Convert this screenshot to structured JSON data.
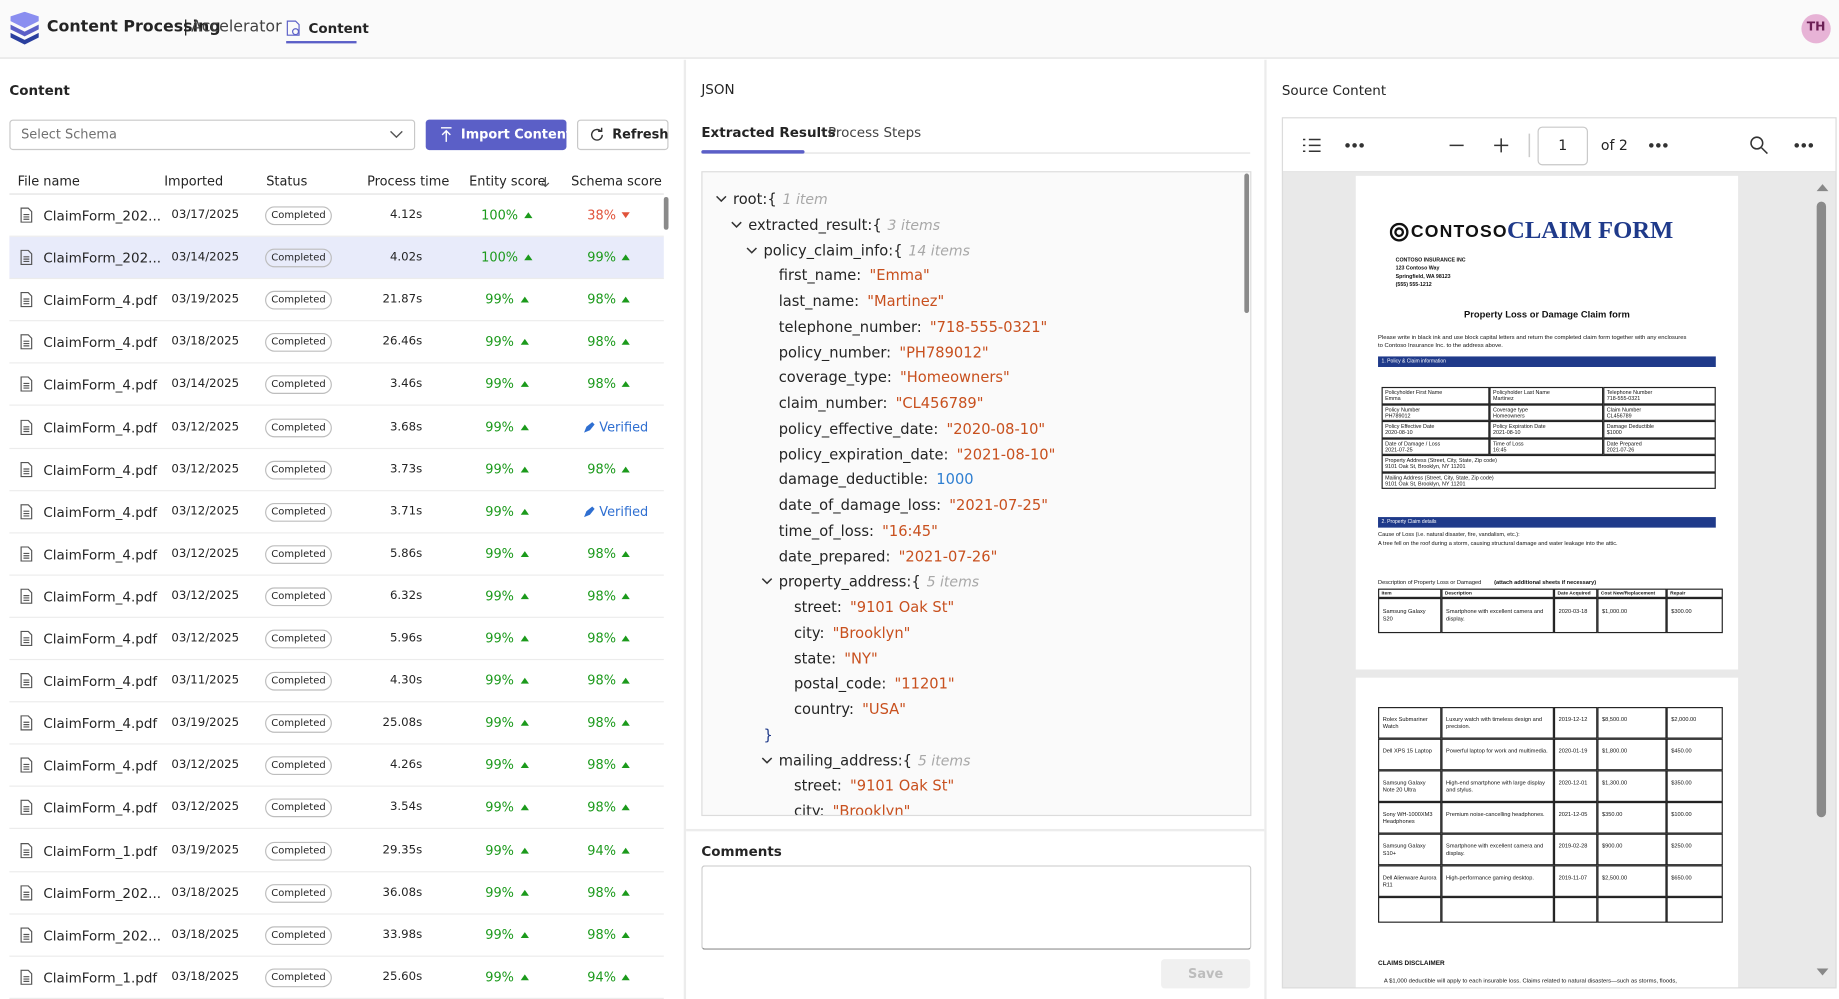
{
  "header": {
    "brand": "Content Processing",
    "separator": "|",
    "product": "Accelerator",
    "tab": "Content",
    "avatar": "TH"
  },
  "content": {
    "title": "Content",
    "schema_placeholder": "Select Schema",
    "import_button": "Import Content",
    "refresh_button": "Refresh",
    "columns": [
      "File name",
      "Imported",
      "Status",
      "Process time",
      "Entity score",
      "Schema score"
    ],
    "rows": [
      {
        "file": "ClaimForm_202...",
        "imported": "03/17/2025",
        "status": "Completed",
        "time": "4.12s",
        "entity": "100%",
        "schema": "38%",
        "trend": "down"
      },
      {
        "file": "ClaimForm_202...",
        "imported": "03/14/2025",
        "status": "Completed",
        "time": "4.02s",
        "entity": "100%",
        "schema": "99%",
        "trend": "up"
      },
      {
        "file": "ClaimForm_4.pdf",
        "imported": "03/19/2025",
        "status": "Completed",
        "time": "21.87s",
        "entity": "99%",
        "schema": "98%",
        "trend": "up"
      },
      {
        "file": "ClaimForm_4.pdf",
        "imported": "03/18/2025",
        "status": "Completed",
        "time": "26.46s",
        "entity": "99%",
        "schema": "98%",
        "trend": "up"
      },
      {
        "file": "ClaimForm_4.pdf",
        "imported": "03/14/2025",
        "status": "Completed",
        "time": "3.46s",
        "entity": "99%",
        "schema": "98%",
        "trend": "up"
      },
      {
        "file": "ClaimForm_4.pdf",
        "imported": "03/12/2025",
        "status": "Completed",
        "time": "3.68s",
        "entity": "99%",
        "schema": "Verified"
      },
      {
        "file": "ClaimForm_4.pdf",
        "imported": "03/12/2025",
        "status": "Completed",
        "time": "3.73s",
        "entity": "99%",
        "schema": "98%",
        "trend": "up"
      },
      {
        "file": "ClaimForm_4.pdf",
        "imported": "03/12/2025",
        "status": "Completed",
        "time": "3.71s",
        "entity": "99%",
        "schema": "Verified"
      },
      {
        "file": "ClaimForm_4.pdf",
        "imported": "03/12/2025",
        "status": "Completed",
        "time": "5.86s",
        "entity": "99%",
        "schema": "98%",
        "trend": "up"
      },
      {
        "file": "ClaimForm_4.pdf",
        "imported": "03/12/2025",
        "status": "Completed",
        "time": "6.32s",
        "entity": "99%",
        "schema": "98%",
        "trend": "up"
      },
      {
        "file": "ClaimForm_4.pdf",
        "imported": "03/12/2025",
        "status": "Completed",
        "time": "5.96s",
        "entity": "99%",
        "schema": "98%",
        "trend": "up"
      },
      {
        "file": "ClaimForm_4.pdf",
        "imported": "03/11/2025",
        "status": "Completed",
        "time": "4.30s",
        "entity": "99%",
        "schema": "98%",
        "trend": "up"
      },
      {
        "file": "ClaimForm_4.pdf",
        "imported": "03/19/2025",
        "status": "Completed",
        "time": "25.08s",
        "entity": "99%",
        "schema": "98%",
        "trend": "up"
      },
      {
        "file": "ClaimForm_4.pdf",
        "imported": "03/12/2025",
        "status": "Completed",
        "time": "4.26s",
        "entity": "99%",
        "schema": "98%",
        "trend": "up"
      },
      {
        "file": "ClaimForm_4.pdf",
        "imported": "03/12/2025",
        "status": "Completed",
        "time": "3.54s",
        "entity": "99%",
        "schema": "98%",
        "trend": "up"
      },
      {
        "file": "ClaimForm_1.pdf",
        "imported": "03/19/2025",
        "status": "Completed",
        "time": "29.35s",
        "entity": "99%",
        "schema": "94%",
        "trend": "up"
      },
      {
        "file": "ClaimForm_202...",
        "imported": "03/18/2025",
        "status": "Completed",
        "time": "36.08s",
        "entity": "99%",
        "schema": "98%",
        "trend": "up"
      },
      {
        "file": "ClaimForm_202...",
        "imported": "03/18/2025",
        "status": "Completed",
        "time": "33.98s",
        "entity": "99%",
        "schema": "98%",
        "trend": "up"
      },
      {
        "file": "ClaimForm_1.pdf",
        "imported": "03/18/2025",
        "status": "Completed",
        "time": "25.60s",
        "entity": "99%",
        "schema": "94%",
        "trend": "up"
      }
    ]
  },
  "json": {
    "title": "JSON",
    "tabs": [
      "Extracted Results",
      "Process Steps"
    ],
    "lines": [
      {
        "depth": 0,
        "key": "root:{",
        "note": "1 item",
        "kind": "open"
      },
      {
        "depth": 1,
        "key": "extracted_result:{",
        "note": "3 items",
        "kind": "open"
      },
      {
        "depth": 2,
        "key": "policy_claim_info:{",
        "note": "14 items",
        "kind": "open"
      },
      {
        "depth": 3,
        "key": "first_name:",
        "value": "\"Emma\"",
        "kind": "string"
      },
      {
        "depth": 3,
        "key": "last_name:",
        "value": "\"Martinez\"",
        "kind": "string"
      },
      {
        "depth": 3,
        "key": "telephone_number:",
        "value": "\"718-555-0321\"",
        "kind": "string"
      },
      {
        "depth": 3,
        "key": "policy_number:",
        "value": "\"PH789012\"",
        "kind": "string"
      },
      {
        "depth": 3,
        "key": "coverage_type:",
        "value": "\"Homeowners\"",
        "kind": "string"
      },
      {
        "depth": 3,
        "key": "claim_number:",
        "value": "\"CL456789\"",
        "kind": "string"
      },
      {
        "depth": 3,
        "key": "policy_effective_date:",
        "value": "\"2020-08-10\"",
        "kind": "string"
      },
      {
        "depth": 3,
        "key": "policy_expiration_date:",
        "value": "\"2021-08-10\"",
        "kind": "string"
      },
      {
        "depth": 3,
        "key": "damage_deductible:",
        "value": "1000",
        "kind": "number"
      },
      {
        "depth": 3,
        "key": "date_of_damage_loss:",
        "value": "\"2021-07-25\"",
        "kind": "string"
      },
      {
        "depth": 3,
        "key": "time_of_loss:",
        "value": "\"16:45\"",
        "kind": "string"
      },
      {
        "depth": 3,
        "key": "date_prepared:",
        "value": "\"2021-07-26\"",
        "kind": "string"
      },
      {
        "depth": 3,
        "key": "property_address:{",
        "note": "5 items",
        "kind": "open"
      },
      {
        "depth": 4,
        "key": "street:",
        "value": "\"9101 Oak St\"",
        "kind": "string"
      },
      {
        "depth": 4,
        "key": "city:",
        "value": "\"Brooklyn\"",
        "kind": "string"
      },
      {
        "depth": 4,
        "key": "state:",
        "value": "\"NY\"",
        "kind": "string"
      },
      {
        "depth": 4,
        "key": "postal_code:",
        "value": "\"11201\"",
        "kind": "string"
      },
      {
        "depth": 4,
        "key": "country:",
        "value": "\"USA\"",
        "kind": "string"
      },
      {
        "depth": 2,
        "key": "}",
        "kind": "close"
      },
      {
        "depth": 3,
        "key": "mailing_address:{",
        "note": "5 items",
        "kind": "open"
      },
      {
        "depth": 4,
        "key": "street:",
        "value": "\"9101 Oak St\"",
        "kind": "string"
      },
      {
        "depth": 4,
        "key": "city:",
        "value": "\"Brooklyn\"",
        "kind": "string"
      }
    ]
  },
  "comments": {
    "title": "Comments",
    "save_button": "Save"
  },
  "source": {
    "title": "Source Content",
    "page": "1",
    "page_count": "of 2",
    "document": {
      "logo": "CONTOSO",
      "form_title": "CLAIM FORM",
      "address": [
        "CONTOSO INSURANCE INC",
        "123 Contoso Way",
        "Springfield, WA 98123",
        "(555) 555-1212"
      ],
      "heading": "Property Loss or Damage Claim form",
      "instructions": [
        "Please write in black ink and use block capital letters and return the completed claim form together with any enclosures",
        "to Contoso Insurance Inc. to the address above."
      ],
      "section1": "1. Policy & Claim information",
      "info": [
        [
          [
            "Policyholder First Name",
            "Emma"
          ],
          [
            "Policyholder Last Name",
            "Martinez"
          ],
          [
            "Telephone Number",
            "718-555-0321"
          ]
        ],
        [
          [
            "Policy Number",
            "PH789012"
          ],
          [
            "Coverage type",
            "Homeowners"
          ],
          [
            "Claim Number",
            "CL456789"
          ]
        ],
        [
          [
            "Policy Effective Date",
            "2020-08-10"
          ],
          [
            "Policy Expiration Date",
            "2021-08-10"
          ],
          [
            "Damage Deductible",
            "$1000"
          ]
        ],
        [
          [
            "Date of Damage / Loss",
            "2021-07-25"
          ],
          [
            "Time of Loss",
            "16:45"
          ],
          [
            "Date Prepared",
            "2021-07-26"
          ]
        ]
      ],
      "addresses": [
        [
          "Property Address (Street, City, State, Zip code)",
          "9101 Oak St, Brooklyn, NY 11201"
        ],
        [
          "Mailing Address (Street, City, State, Zip code)",
          "9101 Oak St, Brooklyn, NY 11201"
        ]
      ],
      "section2": "2. Property Claim details",
      "cause_label": "Cause of Loss (i.e. natural disaster, fire, vandalism, etc.):",
      "cause_text": "A tree fell on the roof during a storm, causing structural damage and water leakage into the attic.",
      "description_label": "Description of Property Loss or Damaged",
      "description_note": "(attach additional sheets if necessary)",
      "item_columns": [
        "Item",
        "Description",
        "Date Acquired",
        "Cost New/Replacement",
        "Repair"
      ],
      "items_page1": [
        [
          "Samsung Galaxy S20",
          "Smartphone with excellent camera and display.",
          "2020-03-18",
          "$1,000.00",
          "$300.00"
        ]
      ],
      "items_page2": [
        [
          "Rolex Submariner Watch",
          "Luxury watch with timeless design and precision.",
          "2019-12-12",
          "$8,500.00",
          "$2,000.00"
        ],
        [
          "Dell XPS 15 Laptop",
          "Powerful laptop for work and multimedia.",
          "2020-01-19",
          "$1,800.00",
          "$450.00"
        ],
        [
          "Samsung Galaxy Note 20 Ultra",
          "High-end smartphone with large display and stylus.",
          "2020-12-01",
          "$1,300.00",
          "$350.00"
        ],
        [
          "Sony WH-1000XM3 Headphones",
          "Premium noise-cancelling headphones.",
          "2021-12-05",
          "$350.00",
          "$100.00"
        ],
        [
          "Samsung Galaxy S10+",
          "Smartphone with excellent camera and display.",
          "2019-02-28",
          "$900.00",
          "$250.00"
        ],
        [
          "Dell Alienware Aurora R11",
          "High-performance gaming desktop.",
          "2019-11-07",
          "$2,500.00",
          "$650.00"
        ]
      ],
      "disclaimer_title": "CLAIMS DISCLAIMER",
      "disclaimer_text": "A $1,000 deductible will apply to each insurable loss. Claims related to natural disasters—such as storms, floods,"
    }
  }
}
